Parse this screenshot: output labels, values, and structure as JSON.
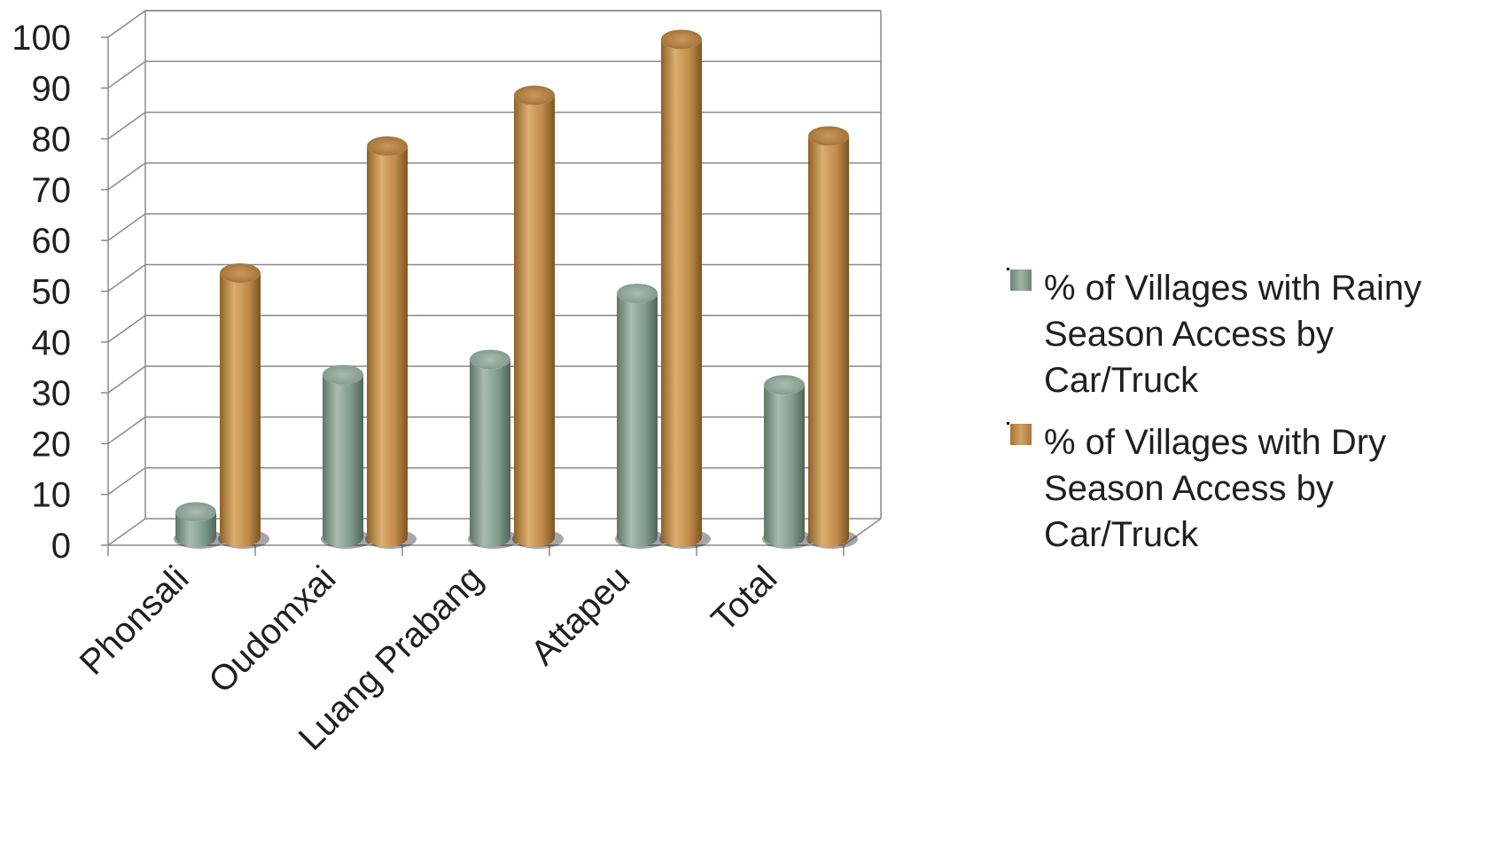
{
  "chart_data": {
    "type": "bar",
    "categories": [
      "Phonsali",
      "Oudomxai",
      "Luang Prabang",
      "Attapeu",
      "Total"
    ],
    "series": [
      {
        "name": "% of Villages with Rainy Season Access by Car/Truck",
        "legend_lines": [
          "% of Villages with Rainy",
          "Season Access by",
          "Car/Truck"
        ],
        "values": [
          5,
          32,
          35,
          48,
          30
        ],
        "color": "#7f9a8c"
      },
      {
        "name": "% of Villages with Dry Season Access by Car/Truck",
        "legend_lines": [
          "% of Villages with Dry",
          "Season Access by",
          "Car/Truck"
        ],
        "values": [
          52,
          77,
          87,
          98,
          79
        ],
        "color": "#c08a4a"
      }
    ],
    "ylim": [
      0,
      100
    ],
    "yticks": [
      0,
      10,
      20,
      30,
      40,
      50,
      60,
      70,
      80,
      90,
      100
    ],
    "grid": true,
    "style": "3d-cylinder",
    "legend_position": "right",
    "title": "",
    "xlabel": "",
    "ylabel": ""
  }
}
